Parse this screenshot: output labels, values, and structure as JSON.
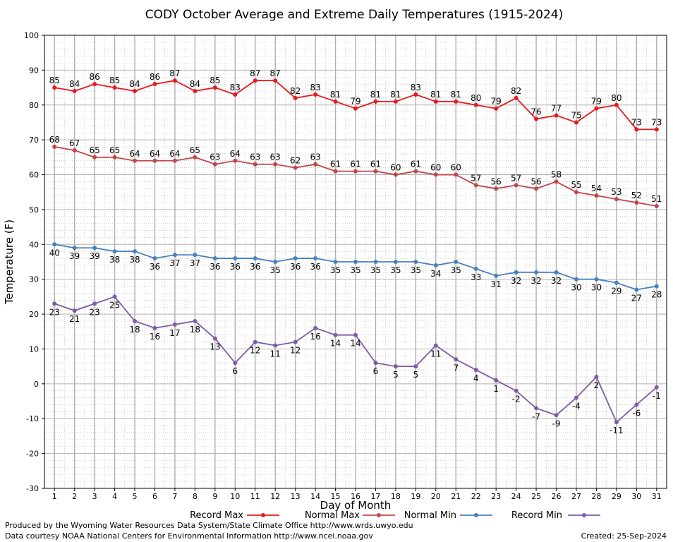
{
  "chart_data": {
    "type": "line",
    "title": "CODY October Average and Extreme Daily Temperatures (1915-2024)",
    "xlabel": "Day of Month",
    "ylabel": "Temperature (F)",
    "ylim": [
      -30,
      100
    ],
    "yticks": [
      -30,
      -20,
      -10,
      0,
      10,
      20,
      30,
      40,
      50,
      60,
      70,
      80,
      90,
      100
    ],
    "x": [
      1,
      2,
      3,
      4,
      5,
      6,
      7,
      8,
      9,
      10,
      11,
      12,
      13,
      14,
      15,
      16,
      17,
      18,
      19,
      20,
      21,
      22,
      23,
      24,
      25,
      26,
      27,
      28,
      29,
      30,
      31
    ],
    "grid": true,
    "legend_position": "bottom",
    "series": [
      {
        "name": "Record Max",
        "color": "#e8191c",
        "label_position": "above",
        "values": [
          85,
          84,
          86,
          85,
          84,
          86,
          87,
          84,
          85,
          83,
          87,
          87,
          82,
          83,
          81,
          79,
          81,
          81,
          83,
          81,
          81,
          80,
          79,
          82,
          76,
          77,
          75,
          79,
          80,
          73,
          73
        ]
      },
      {
        "name": "Normal Max",
        "color": "#c0474a",
        "label_position": "above",
        "values": [
          68,
          67,
          65,
          65,
          64,
          64,
          64,
          65,
          63,
          64,
          63,
          63,
          62,
          63,
          61,
          61,
          61,
          60,
          61,
          60,
          60,
          57,
          56,
          57,
          56,
          58,
          55,
          54,
          53,
          52,
          51
        ]
      },
      {
        "name": "Normal Min",
        "color": "#4a80bd",
        "label_position": "below",
        "values": [
          40,
          39,
          39,
          38,
          38,
          36,
          37,
          37,
          36,
          36,
          36,
          35,
          36,
          36,
          35,
          35,
          35,
          35,
          35,
          34,
          35,
          33,
          31,
          32,
          32,
          32,
          30,
          30,
          29,
          27,
          28
        ]
      },
      {
        "name": "Record Min",
        "color": "#7e5ba6",
        "label_position": "below",
        "values": [
          23,
          21,
          23,
          25,
          18,
          16,
          17,
          18,
          13,
          6,
          12,
          11,
          12,
          16,
          14,
          14,
          6,
          5,
          5,
          11,
          7,
          4,
          1,
          -2,
          -7,
          -9,
          -4,
          2,
          -11,
          -6,
          -1
        ]
      }
    ]
  },
  "footer": {
    "produced_by": "Produced by the Wyoming Water Resources Data System/State Climate Office http://www.wrds.uwyo.edu",
    "courtesy": "Data courtesy NOAA National Centers for Environmental Information http://www.ncei.noaa.gov",
    "created": "Created:  25-Sep-2024"
  }
}
